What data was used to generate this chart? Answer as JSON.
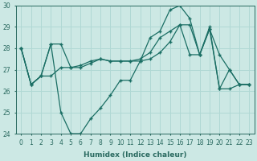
{
  "xlabel": "Humidex (Indice chaleur)",
  "xlim": [
    -0.5,
    23.5
  ],
  "ylim": [
    24,
    30
  ],
  "yticks": [
    24,
    25,
    26,
    27,
    28,
    29,
    30
  ],
  "xticks": [
    0,
    1,
    2,
    3,
    4,
    5,
    6,
    7,
    8,
    9,
    10,
    11,
    12,
    13,
    14,
    15,
    16,
    17,
    18,
    19,
    20,
    21,
    22,
    23
  ],
  "background_color": "#cce8e4",
  "grid_color": "#b0d8d4",
  "line_color": "#1a6e64",
  "series": [
    [
      28.0,
      26.3,
      26.7,
      28.2,
      25.0,
      24.0,
      24.0,
      24.7,
      25.2,
      25.8,
      26.5,
      26.5,
      27.4,
      28.5,
      28.8,
      29.8,
      30.0,
      29.4,
      27.7,
      29.0,
      26.1,
      26.1,
      26.3,
      26.3
    ],
    [
      28.0,
      26.3,
      26.7,
      28.2,
      28.2,
      27.1,
      27.1,
      27.3,
      27.5,
      27.4,
      27.4,
      27.4,
      27.4,
      27.5,
      27.8,
      28.3,
      29.1,
      27.7,
      27.7,
      28.9,
      26.1,
      27.0,
      26.3,
      26.3
    ],
    [
      28.0,
      26.3,
      26.7,
      26.7,
      27.1,
      27.1,
      27.2,
      27.4,
      27.5,
      27.4,
      27.4,
      27.4,
      27.5,
      27.8,
      28.5,
      28.8,
      29.1,
      29.1,
      27.7,
      28.9,
      27.7,
      27.0,
      26.3,
      26.3
    ]
  ],
  "tick_fontsize": 5.5,
  "xlabel_fontsize": 6.5,
  "tick_color": "#2a6a60"
}
